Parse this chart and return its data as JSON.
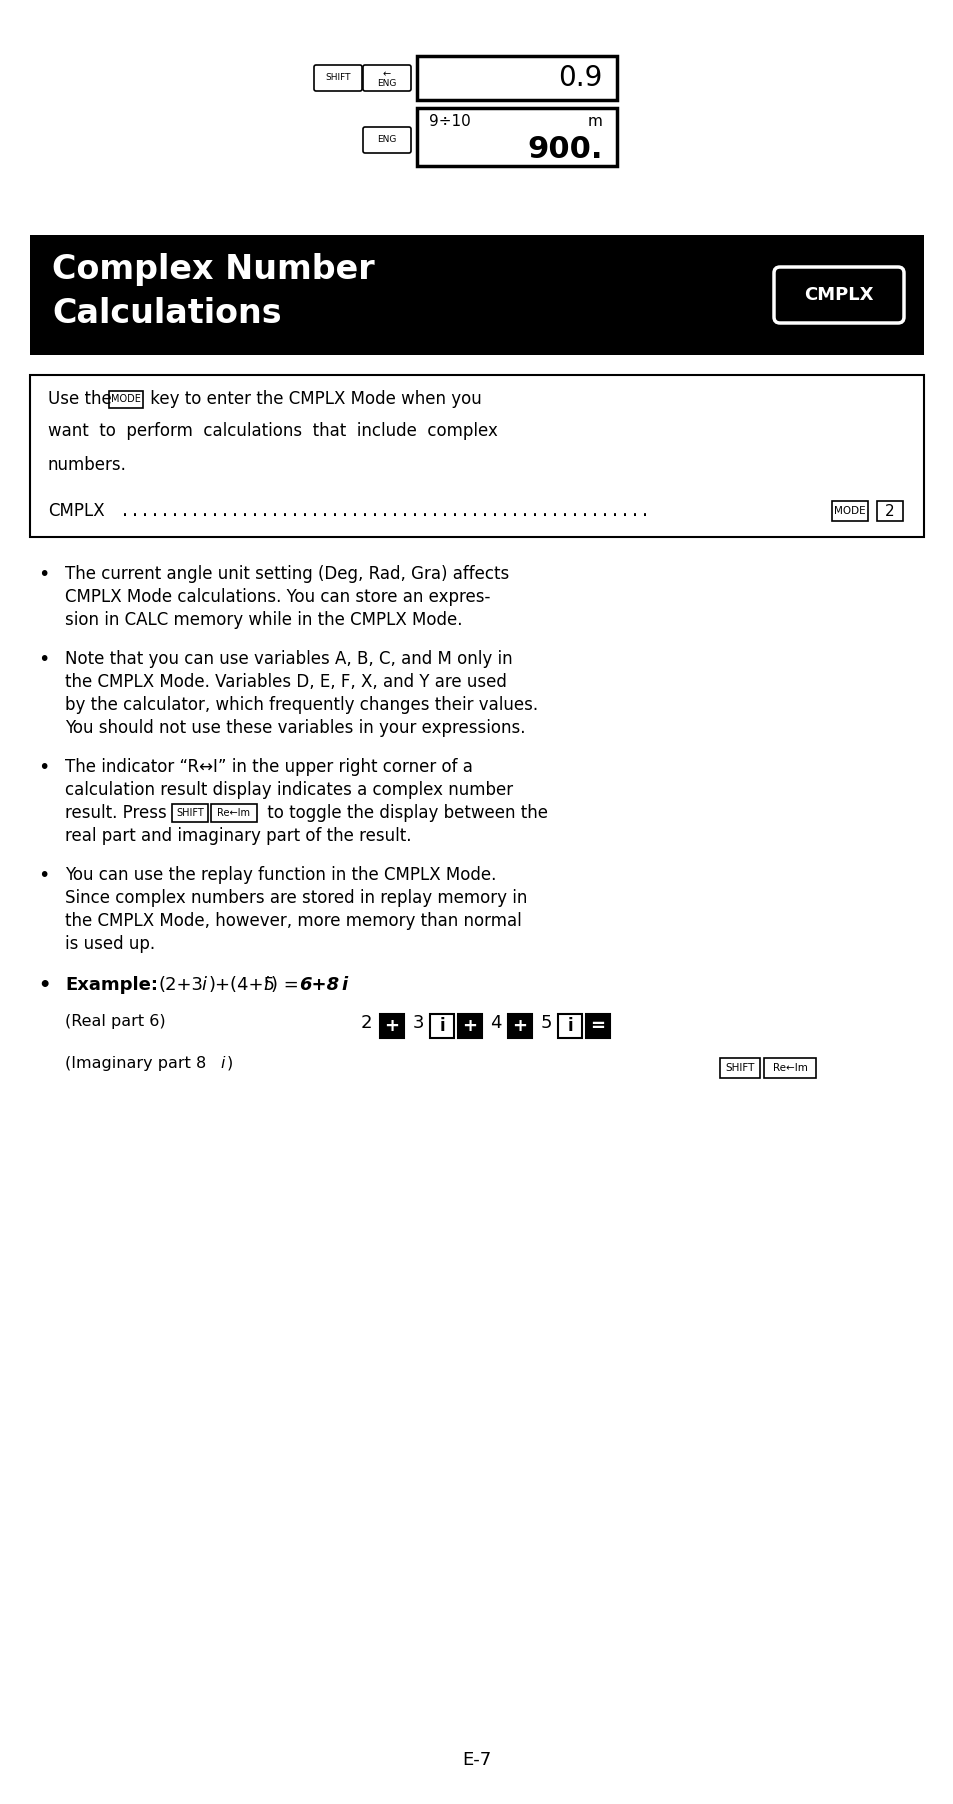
{
  "bg_color": "#ffffff",
  "header_bg": "#000000",
  "header_text_line1": "Complex Number",
  "header_text_line2": "Calculations",
  "header_badge": "CMPLX",
  "page_number": "E-7"
}
